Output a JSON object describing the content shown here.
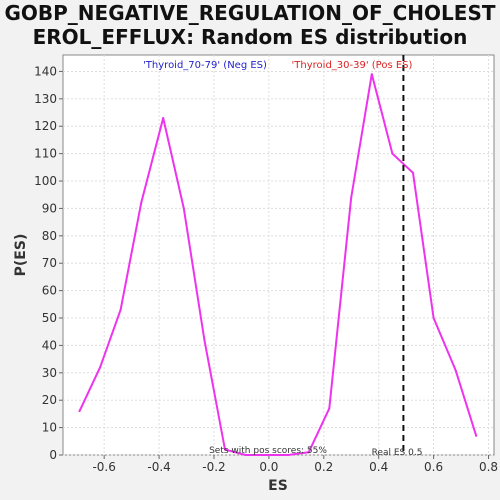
{
  "chart_data": {
    "type": "line",
    "title_line1": "GOBP_NEGATIVE_REGULATION_OF_CHOLEST",
    "title_line2": "EROL_EFFLUX: Random ES distribution",
    "xlabel": "ES",
    "ylabel": "P(ES)",
    "xlim": [
      -0.75,
      0.82
    ],
    "ylim": [
      0,
      146
    ],
    "x_ticks": [
      -0.6,
      -0.4,
      -0.2,
      0.0,
      0.2,
      0.4,
      0.6,
      0.8
    ],
    "x_tick_labels": [
      "-0.6",
      "-0.4",
      "-0.2",
      "0.0",
      "0.2",
      "0.4",
      "0.6",
      "0.8"
    ],
    "y_ticks": [
      0,
      10,
      20,
      30,
      40,
      50,
      60,
      70,
      80,
      90,
      100,
      110,
      120,
      130,
      140
    ],
    "grid": true,
    "series": [
      {
        "color": "#ee33ee",
        "x": [
          -0.69,
          -0.615,
          -0.54,
          -0.465,
          -0.385,
          -0.31,
          -0.235,
          -0.16,
          -0.085,
          -0.01,
          0.07,
          0.145,
          0.22,
          0.3,
          0.375,
          0.45,
          0.525,
          0.6,
          0.68,
          0.755
        ],
        "y": [
          16,
          32,
          53,
          92,
          123,
          90,
          42,
          2,
          0,
          0,
          0,
          1,
          17,
          94,
          139,
          110,
          103,
          50,
          31,
          7
        ]
      }
    ],
    "real_es": 0.49,
    "legend_neg": "'Thyroid_70-79' (Neg ES)",
    "legend_pos": "'Thyroid_30-39' (Pos ES)",
    "legend_neg_color": "#2222cc",
    "legend_pos_color": "#dd2222",
    "annot_sets": "Sets with pos scores: 55%",
    "annot_real": "Real ES 0.5"
  }
}
